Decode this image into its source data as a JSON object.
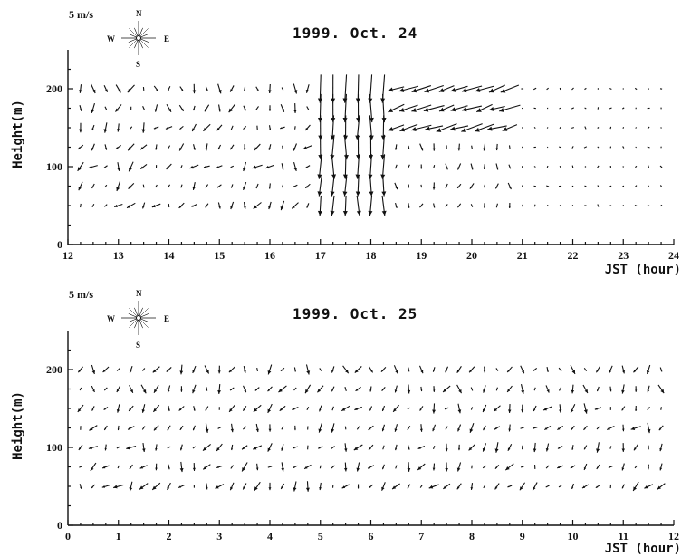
{
  "chart_data": [
    {
      "type": "vector-field",
      "title": "1999. Oct. 24",
      "xlabel": "JST   (hour)",
      "ylabel": "Height(m)",
      "xlim": [
        12,
        24
      ],
      "ylim": [
        0,
        250
      ],
      "x_ticks": [
        "12",
        "13",
        "14",
        "15",
        "16",
        "17",
        "18",
        "19",
        "20",
        "21",
        "22",
        "23",
        "24"
      ],
      "y_ticks": [
        "0",
        "100",
        "200"
      ],
      "heights": [
        50,
        75,
        100,
        125,
        150,
        175,
        200
      ],
      "time_step_hours": 0.25,
      "scale_label": "5 m/s",
      "compass": {
        "N": "N",
        "S": "S",
        "E": "E",
        "W": "W"
      },
      "segments": [
        {
          "x_start": 12.0,
          "x_end": 17.0,
          "regime": "light-variable"
        },
        {
          "x_start": 17.0,
          "x_end": 18.5,
          "regime": "strong-northerly"
        },
        {
          "x_start": 18.5,
          "x_end": 21.0,
          "regime": "westerly-aloft"
        },
        {
          "x_start": 21.0,
          "x_end": 24.0,
          "regime": "calm"
        }
      ]
    },
    {
      "type": "vector-field",
      "title": "1999. Oct. 25",
      "xlabel": "JST   (hour)",
      "ylabel": "Height(m)",
      "xlim": [
        0,
        12
      ],
      "ylim": [
        0,
        250
      ],
      "x_ticks": [
        "0",
        "1",
        "2",
        "3",
        "4",
        "5",
        "6",
        "7",
        "8",
        "9",
        "10",
        "11",
        "12"
      ],
      "y_ticks": [
        "0",
        "100",
        "200"
      ],
      "heights": [
        50,
        75,
        100,
        125,
        150,
        175,
        200
      ],
      "time_step_hours": 0.25,
      "scale_label": "5 m/s",
      "compass": {
        "N": "N",
        "S": "S",
        "E": "E",
        "W": "W"
      },
      "segments": [
        {
          "x_start": 0.0,
          "x_end": 12.0,
          "regime": "light-variable"
        }
      ]
    }
  ]
}
